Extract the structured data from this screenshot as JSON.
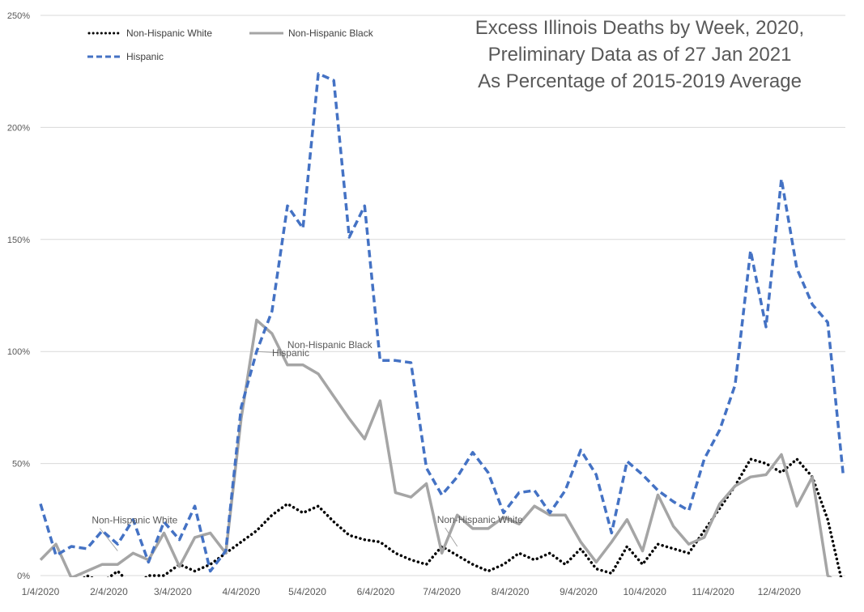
{
  "chart_data": {
    "type": "line",
    "title_lines": [
      "Excess Illinois Deaths by Week, 2020,",
      "Preliminary Data as of 27 Jan 2021",
      "As Percentage of 2015-2019 Average"
    ],
    "ylim": [
      0,
      250
    ],
    "yticks": [
      "0%",
      "50%",
      "100%",
      "150%",
      "200%",
      "250%"
    ],
    "ytick_values": [
      0,
      50,
      100,
      150,
      200,
      250
    ],
    "xlim": [
      0,
      365
    ],
    "xticks": [
      "1/4/2020",
      "2/4/2020",
      "3/4/2020",
      "4/4/2020",
      "5/4/2020",
      "6/4/2020",
      "7/4/2020",
      "8/4/2020",
      "9/4/2020",
      "10/4/2020",
      "11/4/2020",
      "12/4/2020"
    ],
    "xtick_days": [
      0,
      31,
      60,
      91,
      121,
      152,
      182,
      213,
      244,
      274,
      305,
      335
    ],
    "grid": "horizontal",
    "legend_position": "top-left",
    "x": [
      0,
      7,
      14,
      21,
      28,
      35,
      42,
      49,
      56,
      63,
      70,
      77,
      84,
      91,
      98,
      105,
      112,
      119,
      126,
      133,
      140,
      147,
      154,
      161,
      168,
      175,
      182,
      189,
      196,
      203,
      210,
      217,
      224,
      231,
      238,
      245,
      252,
      259,
      266,
      273,
      280,
      287,
      294,
      301,
      308,
      315,
      322,
      329,
      336,
      343,
      350,
      357,
      364
    ],
    "series": [
      {
        "name": "Non-Hispanic White",
        "style": "dotted",
        "color": "#000000",
        "values": [
          -5,
          -8,
          -6,
          0,
          -3,
          2,
          -5,
          0,
          0,
          5,
          2,
          5,
          10,
          15,
          20,
          27,
          32,
          28,
          31,
          24,
          18,
          16,
          15,
          10,
          7,
          5,
          13,
          9,
          5,
          2,
          5,
          10,
          7,
          10,
          5,
          12,
          3,
          1,
          13,
          5,
          14,
          12,
          10,
          20,
          30,
          40,
          52,
          50,
          46,
          52,
          44,
          25,
          -5
        ]
      },
      {
        "name": "Non-Hispanic Black",
        "style": "solid",
        "color": "#A5A5A5",
        "values": [
          7,
          14,
          -1,
          2,
          5,
          5,
          10,
          7,
          19,
          4,
          17,
          19,
          10,
          70,
          114,
          108,
          94,
          94,
          90,
          80,
          70,
          61,
          78,
          37,
          35,
          41,
          10,
          27,
          21,
          21,
          26,
          23,
          31,
          27,
          27,
          15,
          6,
          15,
          25,
          11,
          36,
          22,
          14,
          17,
          32,
          40,
          44,
          45,
          54,
          31,
          44,
          0,
          -5
        ]
      },
      {
        "name": "Hispanic",
        "style": "dashed",
        "color": "#4472C4",
        "values": [
          32,
          9,
          13,
          12,
          20,
          14,
          25,
          6,
          24,
          16,
          31,
          2,
          11,
          75,
          100,
          118,
          165,
          155,
          224,
          221,
          151,
          165,
          96,
          96,
          95,
          48,
          36,
          44,
          55,
          46,
          28,
          37,
          38,
          28,
          38,
          56,
          45,
          19,
          51,
          45,
          38,
          33,
          29,
          52,
          65,
          85,
          145,
          111,
          177,
          137,
          121,
          113,
          45
        ]
      }
    ],
    "annotations": [
      {
        "text": "Non-Hispanic Black",
        "series": "Non-Hispanic Black",
        "x": 98,
        "y": 100
      },
      {
        "text": "Hispanic",
        "series": "Hispanic",
        "x": 105,
        "y": 99
      },
      {
        "text": "Non-Hispanic White",
        "series": "Non-Hispanic White",
        "x": 189,
        "y": 13
      },
      {
        "text": "Non-Hispanic White",
        "series": "Non-Hispanic White",
        "x": 35,
        "y": 11
      }
    ]
  }
}
